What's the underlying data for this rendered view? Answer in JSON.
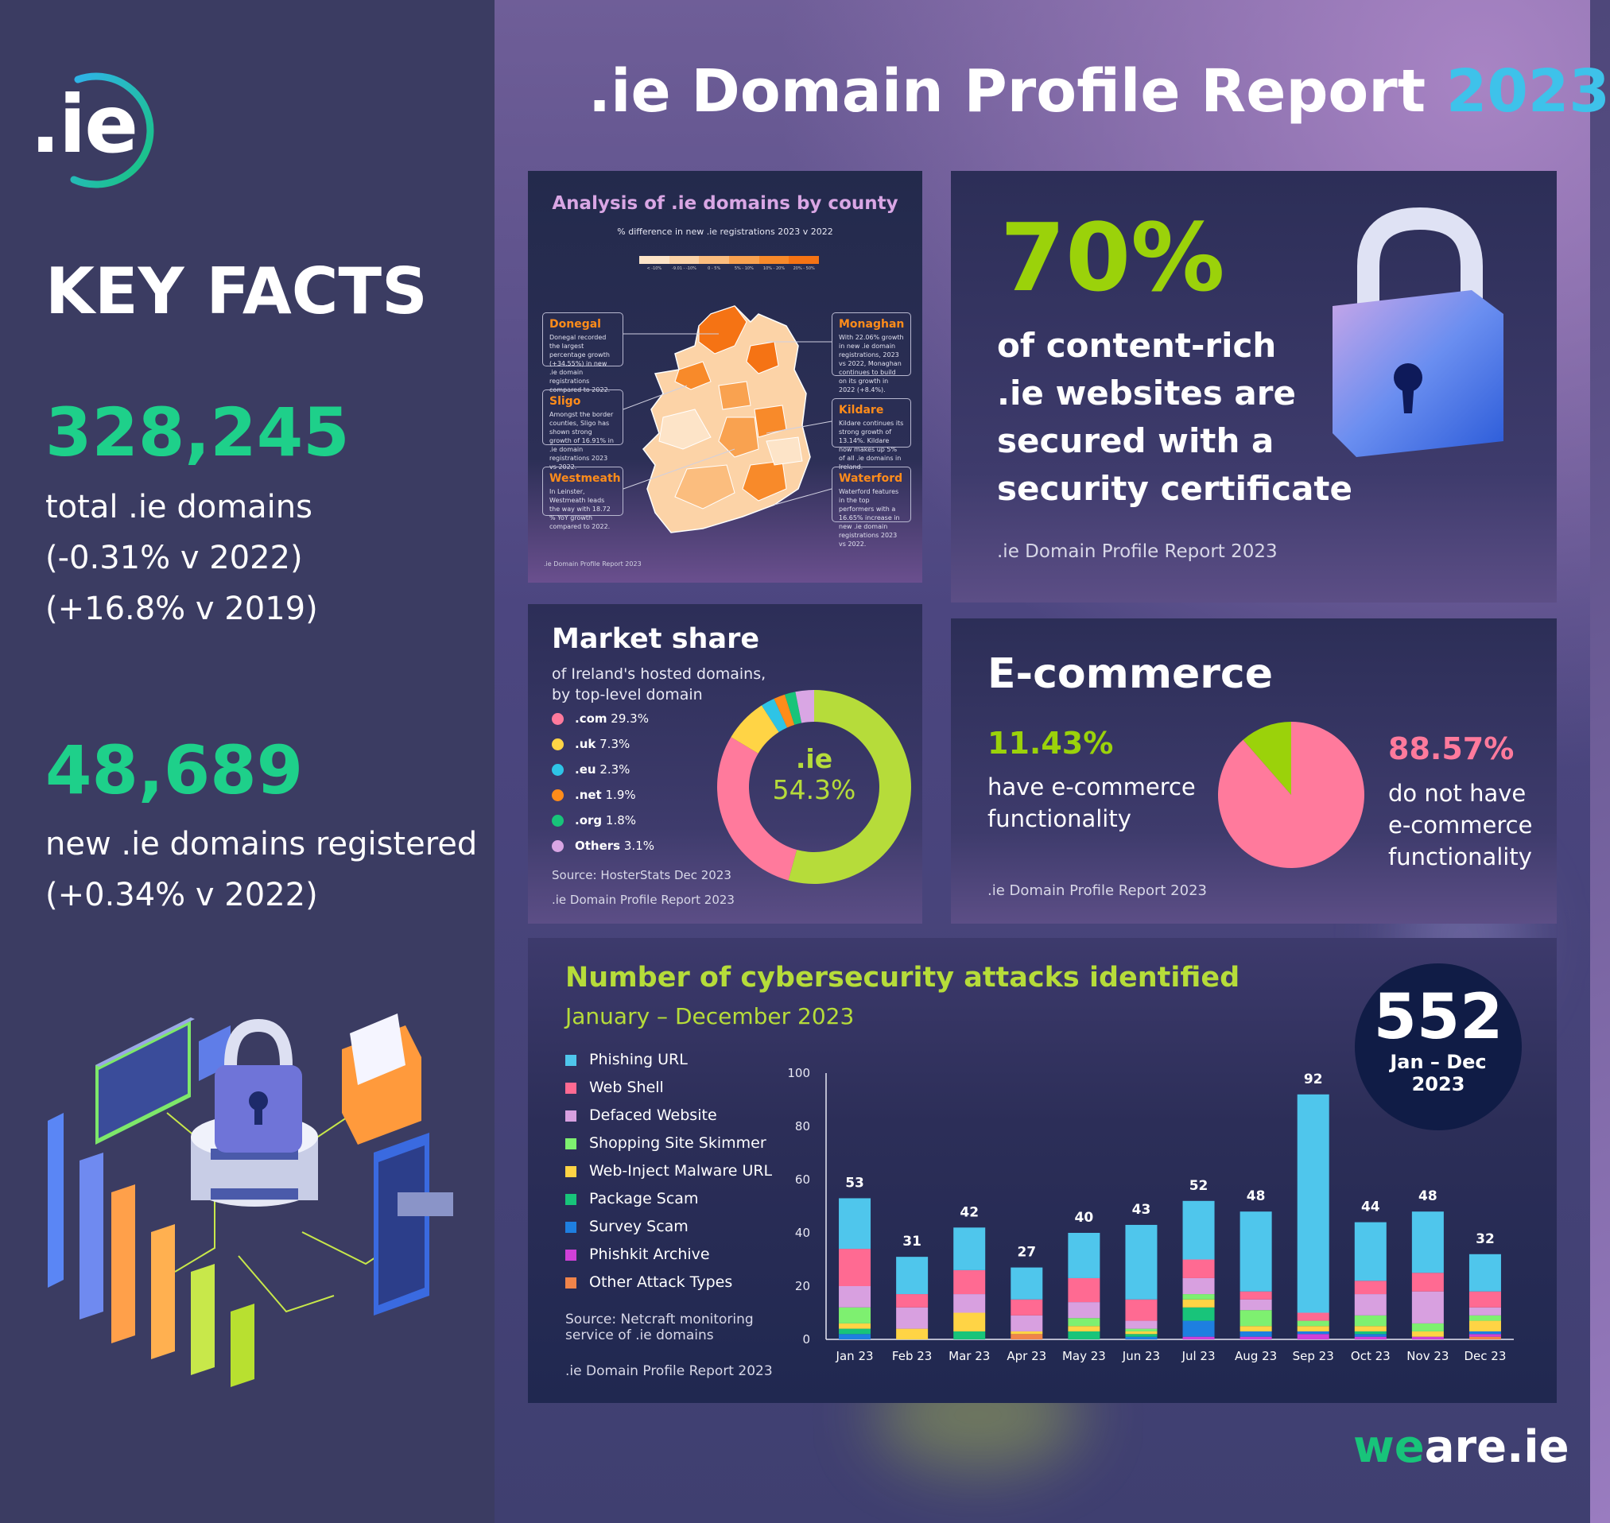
{
  "brand": {
    "logo_text": ".ie",
    "footer_logo_a": "we",
    "footer_logo_b": "are.ie"
  },
  "header": {
    "title_main": ".ie Domain Profile Report ",
    "title_year": "2023"
  },
  "key_facts": {
    "heading": "KEY FACTS",
    "total_number": "328,245",
    "total_lines": [
      "total .ie domains",
      "(-0.31% v 2022)",
      "(+16.8% v 2019)"
    ],
    "new_number": "48,689",
    "new_lines": [
      "new .ie domains registered",
      "(+0.34% v 2022)"
    ]
  },
  "county": {
    "title": "Analysis of .ie domains by county",
    "subtitle": "% difference in new .ie registrations 2023 v 2022",
    "scale_labels": [
      "< -10%",
      "-9.01 - -10%",
      "0 - 5%",
      "5% - 10%",
      "10% - 20%",
      "20% - 50%"
    ],
    "scale_colors": [
      "#fde4c8",
      "#fcd3a7",
      "#fbbd7e",
      "#f9a250",
      "#f88a2a",
      "#f57314"
    ],
    "callouts": [
      {
        "name": "Donegal",
        "text": "Donegal recorded the largest percentage growth (+34.55%) in new .ie domain registrations compared to 2022."
      },
      {
        "name": "Sligo",
        "text": "Amongst the border counties, Sligo has shown strong growth of 16.91% in .ie domain registrations 2023 vs 2022."
      },
      {
        "name": "Westmeath",
        "text": "In Leinster, Westmeath leads the way with 18.72 % YoY growth compared to 2022."
      },
      {
        "name": "Monaghan",
        "text": "With 22.06% growth in new .ie domain registrations, 2023 vs 2022, Monaghan continues to build on its growth in 2022 (+8.4%)."
      },
      {
        "name": "Kildare",
        "text": "Kildare continues its strong growth of 13.14%. Kildare now makes up 5% of all .ie domains in Ireland."
      },
      {
        "name": "Waterford",
        "text": "Waterford features in the top performers with a 16.65% increase in new .ie domain registrations 2023 vs 2022."
      }
    ],
    "footer": ".ie Domain Profile Report 2023"
  },
  "security": {
    "big": "70%",
    "lines": [
      "of content-rich",
      ".ie websites are",
      "secured with a",
      "security certificate"
    ],
    "footer": ".ie Domain Profile Report 2023"
  },
  "market": {
    "title": "Market share",
    "subtitle_lines": [
      "of Ireland's hosted domains,",
      "by top-level domain"
    ],
    "center_label": ".ie",
    "center_value": "54.3%",
    "source": "Source: HosterStats Dec 2023",
    "footer": ".ie Domain Profile Report 2023"
  },
  "ecommerce": {
    "title": "E-commerce",
    "have_value": "11.43%",
    "have_lines": [
      "have e-commerce",
      "functionality"
    ],
    "not_value": "88.57%",
    "not_lines": [
      "do not have",
      "e-commerce",
      "functionality"
    ],
    "footer": ".ie Domain Profile Report 2023"
  },
  "cyber": {
    "title": "Number of cybersecurity attacks identified",
    "subtitle": "January – December 2023",
    "total": "552",
    "total_lines": [
      "Jan – Dec",
      "2023"
    ],
    "source_lines": [
      "Source: Netcraft monitoring",
      "service of .ie domains"
    ],
    "footer": ".ie Domain Profile Report 2023"
  },
  "chart_data": [
    {
      "type": "pie",
      "title": "Market share",
      "labels": [
        ".ie",
        ".com",
        ".uk",
        ".eu",
        ".net",
        ".org",
        "Others"
      ],
      "legend_labels": [
        ".com",
        ".uk",
        ".eu",
        ".net",
        ".org",
        "Others"
      ],
      "legend_values": [
        "29.3%",
        "7.3%",
        "2.3%",
        "1.9%",
        "1.8%",
        "3.1%"
      ],
      "values": [
        54.3,
        29.3,
        7.3,
        2.3,
        1.9,
        1.8,
        3.1
      ],
      "colors": [
        "#b6dc3a",
        "#ff7a9c",
        "#ffd445",
        "#2ec4e6",
        "#ff8c1a",
        "#18c47a",
        "#d9a6e4"
      ]
    },
    {
      "type": "pie",
      "title": "E-commerce",
      "labels": [
        "have e-commerce functionality",
        "do not have e-commerce functionality"
      ],
      "values": [
        11.43,
        88.57
      ],
      "colors": [
        "#9bd20a",
        "#ff7a9c"
      ]
    },
    {
      "type": "bar",
      "stacked": true,
      "title": "Number of cybersecurity attacks identified",
      "categories": [
        "Jan 23",
        "Feb 23",
        "Mar 23",
        "Apr 23",
        "May 23",
        "Jun 23",
        "Jul 23",
        "Aug 23",
        "Sep 23",
        "Oct 23",
        "Nov 23",
        "Dec 23"
      ],
      "totals": [
        53,
        31,
        42,
        27,
        40,
        43,
        52,
        48,
        92,
        44,
        48,
        32
      ],
      "ylim": [
        0,
        100
      ],
      "yticks": [
        0,
        20,
        40,
        60,
        80,
        100
      ],
      "series": [
        {
          "name": "Other Attack Types",
          "color": "#f0844a",
          "values": [
            0,
            0,
            0,
            2,
            0,
            0,
            0,
            0,
            0,
            0,
            0,
            1
          ]
        },
        {
          "name": "Phishkit Archive",
          "color": "#d040d8",
          "values": [
            0,
            0,
            0,
            0,
            0,
            0,
            1,
            1,
            2,
            1,
            1,
            1
          ]
        },
        {
          "name": "Survey Scam",
          "color": "#1e7fe0",
          "values": [
            2,
            0,
            0,
            0,
            0,
            1,
            6,
            2,
            1,
            1,
            0,
            1
          ]
        },
        {
          "name": "Package Scam",
          "color": "#18c47a",
          "values": [
            2,
            0,
            3,
            0,
            3,
            1,
            5,
            0,
            0,
            1,
            0,
            0
          ]
        },
        {
          "name": "Web-Inject Malware URL",
          "color": "#ffd445",
          "values": [
            2,
            4,
            7,
            1,
            2,
            1,
            3,
            2,
            2,
            2,
            2,
            4
          ]
        },
        {
          "name": "Shopping Site Skimmer",
          "color": "#7ef070",
          "values": [
            6,
            0,
            0,
            0,
            3,
            1,
            2,
            6,
            2,
            4,
            3,
            2
          ]
        },
        {
          "name": "Defaced Website",
          "color": "#d8a0e0",
          "values": [
            8,
            8,
            7,
            6,
            6,
            3,
            6,
            4,
            0,
            8,
            12,
            3
          ]
        },
        {
          "name": "Web Shell",
          "color": "#ff6a92",
          "values": [
            14,
            5,
            9,
            6,
            9,
            8,
            7,
            3,
            3,
            5,
            7,
            6
          ]
        },
        {
          "name": "Phishing URL",
          "color": "#4fc6ec",
          "values": [
            19,
            14,
            16,
            12,
            17,
            28,
            22,
            30,
            82,
            22,
            23,
            14
          ]
        }
      ]
    }
  ]
}
